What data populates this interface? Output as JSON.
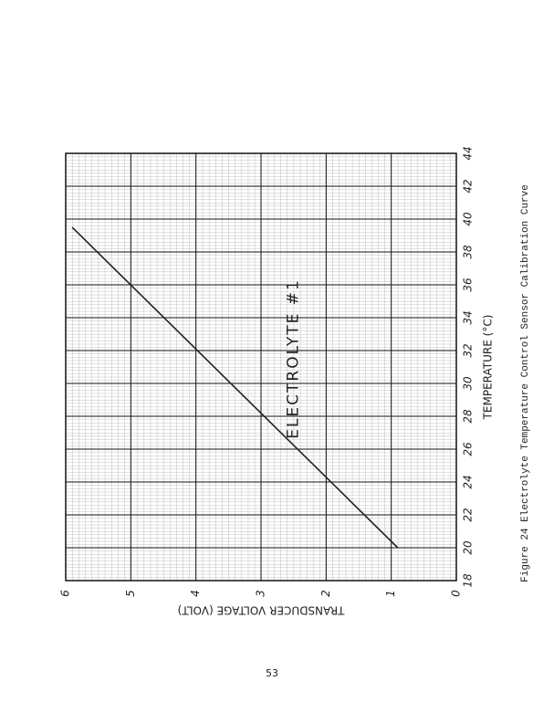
{
  "page_number": "53",
  "caption": "Figure 24 Electrolyte Temperature Control Sensor Calibration Curve",
  "chart_data": {
    "type": "line",
    "x_label": "TEMPERATURE (°C)",
    "y_label": "TRANSDUCER VOLTAGE (VOLT)",
    "annotation": "ELECTROLYTE #1",
    "series": [
      {
        "x": [
          20,
          39.5
        ],
        "values": [
          0.9,
          5.9
        ],
        "color": "#222222"
      }
    ],
    "xlim": [
      18,
      44
    ],
    "ylim": [
      0,
      6
    ],
    "xticks": [
      18,
      20,
      22,
      24,
      26,
      28,
      30,
      32,
      34,
      36,
      38,
      40,
      42,
      44
    ],
    "yticks": [
      0,
      1,
      2,
      3,
      4,
      5,
      6
    ],
    "grid": true
  }
}
